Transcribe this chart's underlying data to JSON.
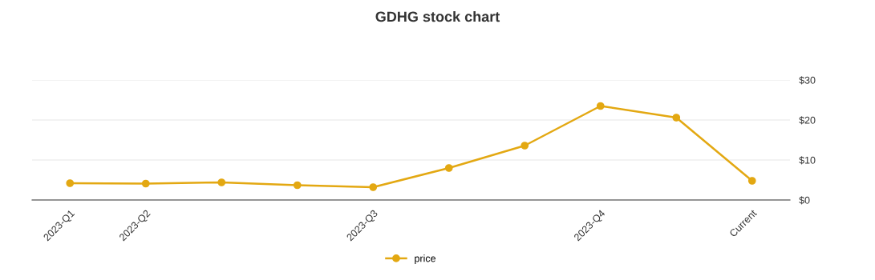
{
  "chart_data": {
    "type": "line",
    "title": "GDHG stock chart",
    "categories": [
      "2023-Q1",
      "2023-Q2",
      null,
      null,
      "2023-Q3",
      null,
      null,
      "2023-Q4",
      null,
      "Current"
    ],
    "series": [
      {
        "name": "price",
        "color": "#e3a812",
        "values": [
          4.2,
          4.1,
          4.4,
          3.7,
          3.2,
          8.0,
          13.6,
          23.5,
          20.6,
          4.8
        ]
      }
    ],
    "ylim": [
      0,
      30
    ],
    "yticks": [
      {
        "value": 0,
        "label": "$0"
      },
      {
        "value": 10,
        "label": "$10"
      },
      {
        "value": 20,
        "label": "$20"
      },
      {
        "value": 30,
        "label": "$30"
      }
    ],
    "grid": "y",
    "legend": "bottom",
    "marker": "circle",
    "line_style": "solid"
  }
}
